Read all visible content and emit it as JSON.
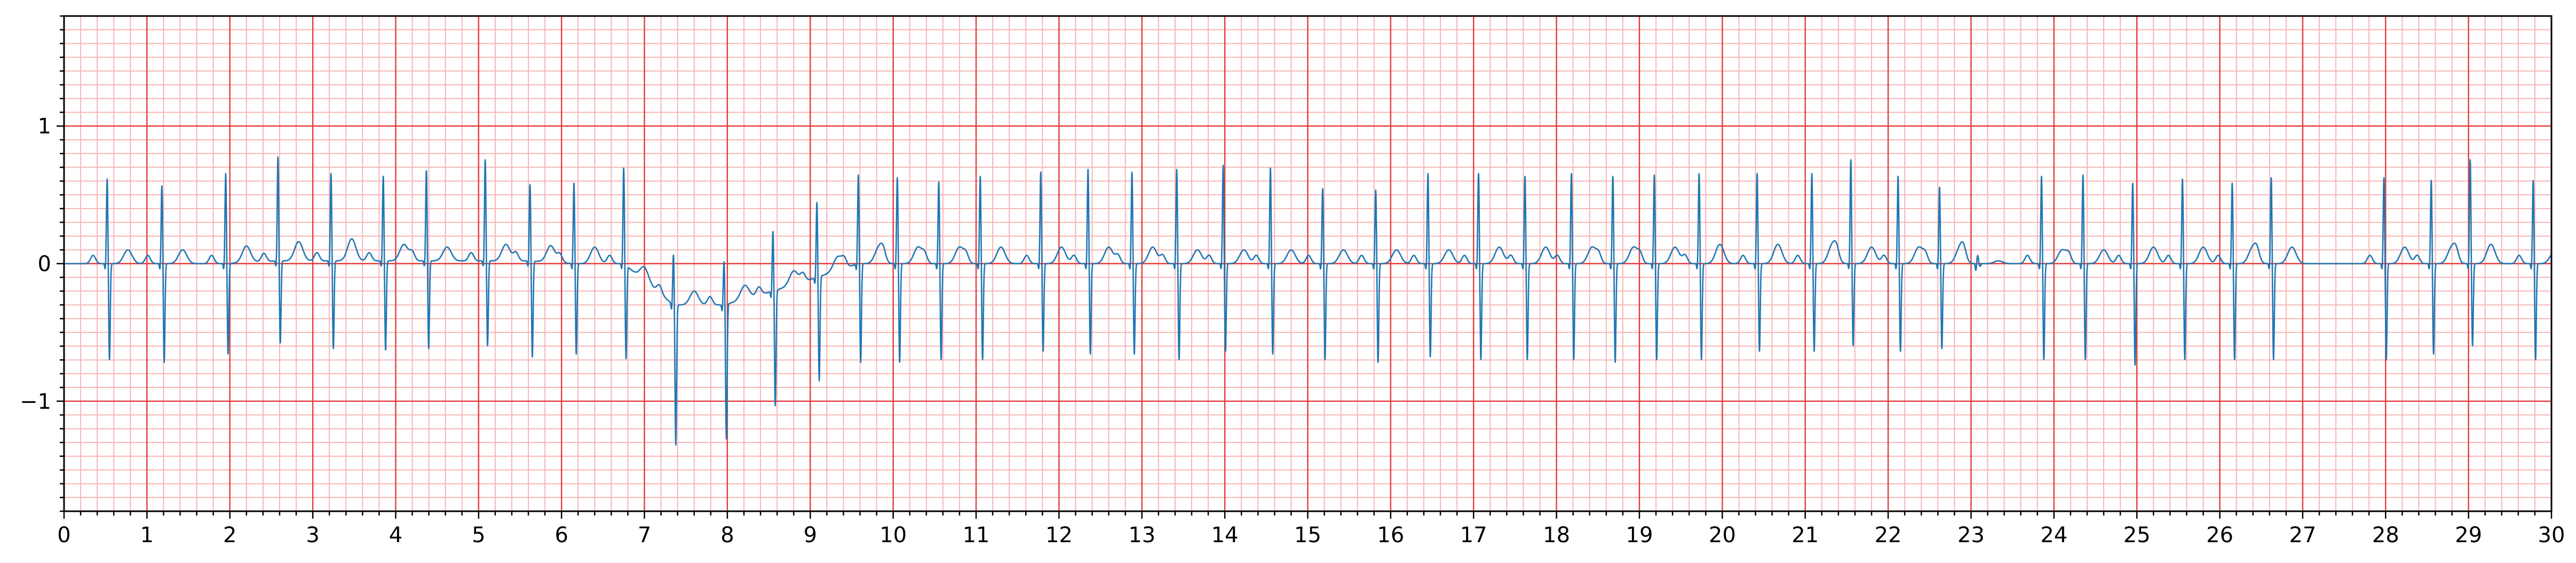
{
  "chart_data": {
    "type": "line",
    "title": "",
    "xlabel": "",
    "ylabel": "",
    "xlim": [
      0,
      30
    ],
    "ylim": [
      -1.8,
      1.8
    ],
    "x_ticks": [
      0,
      1,
      2,
      3,
      4,
      5,
      6,
      7,
      8,
      9,
      10,
      11,
      12,
      13,
      14,
      15,
      16,
      17,
      18,
      19,
      20,
      21,
      22,
      23,
      24,
      25,
      26,
      27,
      28,
      29,
      30
    ],
    "x_tick_labels": [
      "0",
      "1",
      "2",
      "3",
      "4",
      "5",
      "6",
      "7",
      "8",
      "9",
      "10",
      "11",
      "12",
      "13",
      "14",
      "15",
      "16",
      "17",
      "18",
      "19",
      "20",
      "21",
      "22",
      "23",
      "24",
      "25",
      "26",
      "27",
      "28",
      "29",
      "30"
    ],
    "y_ticks": [
      -1,
      0,
      1
    ],
    "y_tick_labels": [
      "−1",
      "0",
      "1"
    ],
    "x_major_step": 1,
    "x_minor_step": 0.2,
    "y_major_step": 1,
    "y_minor_step": 0.1,
    "grid": true,
    "grid_style": "ecg paper",
    "colors": {
      "trace": "#1f77b4",
      "grid_major": "#e33a3a",
      "grid_minor": "#f7b6b6"
    },
    "series": [
      {
        "beats": [
          {
            "t": 0.52,
            "r": 0.62,
            "s": -0.7,
            "base": 0.0,
            "tw": 0.1
          },
          {
            "t": 1.18,
            "r": 0.57,
            "s": -0.72,
            "base": 0.0,
            "tw": 0.1
          },
          {
            "t": 1.95,
            "r": 0.66,
            "s": -0.66,
            "base": 0.0,
            "tw": 0.12
          },
          {
            "t": 2.58,
            "r": 0.76,
            "s": -0.6,
            "base": 0.02,
            "tw": 0.14
          },
          {
            "t": 3.22,
            "r": 0.64,
            "s": -0.64,
            "base": 0.02,
            "tw": 0.16
          },
          {
            "t": 3.85,
            "r": 0.62,
            "s": -0.65,
            "base": 0.02,
            "tw": 0.12
          },
          {
            "t": 4.37,
            "r": 0.66,
            "s": -0.64,
            "base": 0.02,
            "tw": 0.1
          },
          {
            "t": 5.08,
            "r": 0.74,
            "s": -0.62,
            "base": 0.02,
            "tw": 0.12
          },
          {
            "t": 5.62,
            "r": 0.56,
            "s": -0.7,
            "base": 0.02,
            "tw": 0.12
          },
          {
            "t": 6.15,
            "r": 0.59,
            "s": -0.66,
            "base": 0.0,
            "tw": 0.12
          },
          {
            "t": 6.75,
            "r": 0.7,
            "s": -0.68,
            "base": 0.0,
            "tw": 0.1
          },
          {
            "t": 7.35,
            "r": 0.37,
            "s": -1.02,
            "base": -0.3,
            "tw": 0.1
          },
          {
            "t": 7.96,
            "r": 0.32,
            "s": -0.98,
            "base": -0.3,
            "tw": 0.1
          },
          {
            "t": 8.55,
            "r": 0.44,
            "s": -0.84,
            "base": -0.2,
            "tw": 0.1
          },
          {
            "t": 9.08,
            "r": 0.55,
            "s": -0.76,
            "base": -0.1,
            "tw": 0.1
          },
          {
            "t": 9.58,
            "r": 0.65,
            "s": -0.72,
            "base": 0.0,
            "tw": 0.12
          },
          {
            "t": 10.05,
            "r": 0.63,
            "s": -0.72,
            "base": 0.0,
            "tw": 0.12
          },
          {
            "t": 10.55,
            "r": 0.6,
            "s": -0.7,
            "base": 0.0,
            "tw": 0.12
          },
          {
            "t": 11.05,
            "r": 0.64,
            "s": -0.7,
            "base": 0.0,
            "tw": 0.12
          },
          {
            "t": 11.78,
            "r": 0.67,
            "s": -0.64,
            "base": 0.0,
            "tw": 0.12
          },
          {
            "t": 12.35,
            "r": 0.69,
            "s": -0.66,
            "base": 0.0,
            "tw": 0.12
          },
          {
            "t": 12.88,
            "r": 0.67,
            "s": -0.66,
            "base": 0.0,
            "tw": 0.12
          },
          {
            "t": 13.42,
            "r": 0.69,
            "s": -0.7,
            "base": 0.0,
            "tw": 0.1
          },
          {
            "t": 13.98,
            "r": 0.72,
            "s": -0.64,
            "base": 0.0,
            "tw": 0.1
          },
          {
            "t": 14.55,
            "r": 0.7,
            "s": -0.66,
            "base": 0.0,
            "tw": 0.1
          },
          {
            "t": 15.18,
            "r": 0.55,
            "s": -0.7,
            "base": 0.0,
            "tw": 0.1
          },
          {
            "t": 15.82,
            "r": 0.54,
            "s": -0.72,
            "base": 0.0,
            "tw": 0.1
          },
          {
            "t": 16.45,
            "r": 0.66,
            "s": -0.68,
            "base": 0.0,
            "tw": 0.1
          },
          {
            "t": 17.06,
            "r": 0.66,
            "s": -0.7,
            "base": 0.0,
            "tw": 0.12
          },
          {
            "t": 17.62,
            "r": 0.64,
            "s": -0.7,
            "base": 0.0,
            "tw": 0.12
          },
          {
            "t": 18.18,
            "r": 0.66,
            "s": -0.7,
            "base": 0.0,
            "tw": 0.12
          },
          {
            "t": 18.68,
            "r": 0.64,
            "s": -0.72,
            "base": 0.0,
            "tw": 0.12
          },
          {
            "t": 19.18,
            "r": 0.65,
            "s": -0.7,
            "base": 0.0,
            "tw": 0.12
          },
          {
            "t": 19.72,
            "r": 0.66,
            "s": -0.7,
            "base": 0.0,
            "tw": 0.14
          },
          {
            "t": 20.42,
            "r": 0.66,
            "s": -0.64,
            "base": 0.0,
            "tw": 0.14
          },
          {
            "t": 21.08,
            "r": 0.66,
            "s": -0.64,
            "base": 0.0,
            "tw": 0.14
          },
          {
            "t": 21.55,
            "r": 0.76,
            "s": -0.6,
            "base": 0.0,
            "tw": 0.12
          },
          {
            "t": 22.12,
            "r": 0.64,
            "s": -0.64,
            "base": 0.0,
            "tw": 0.12
          },
          {
            "t": 22.62,
            "r": 0.56,
            "s": -0.62,
            "base": 0.0,
            "tw": 0.12
          },
          {
            "t": 23.08,
            "r": 0.06,
            "s": -0.02,
            "base": 0.0,
            "tw": 0.02
          },
          {
            "t": 23.85,
            "r": 0.64,
            "s": -0.7,
            "base": 0.0,
            "tw": 0.1
          },
          {
            "t": 24.35,
            "r": 0.65,
            "s": -0.7,
            "base": 0.0,
            "tw": 0.1
          },
          {
            "t": 24.95,
            "r": 0.59,
            "s": -0.74,
            "base": 0.0,
            "tw": 0.12
          },
          {
            "t": 25.55,
            "r": 0.62,
            "s": -0.7,
            "base": 0.0,
            "tw": 0.12
          },
          {
            "t": 26.15,
            "r": 0.59,
            "s": -0.7,
            "base": 0.0,
            "tw": 0.12
          },
          {
            "t": 26.62,
            "r": 0.63,
            "s": -0.7,
            "base": 0.0,
            "tw": 0.12
          },
          {
            "t": 27.98,
            "r": 0.63,
            "s": -0.7,
            "base": 0.0,
            "tw": 0.12
          },
          {
            "t": 28.55,
            "r": 0.61,
            "s": -0.66,
            "base": 0.0,
            "tw": 0.12
          },
          {
            "t": 29.02,
            "r": 0.76,
            "s": -0.6,
            "base": 0.0,
            "tw": 0.14
          },
          {
            "t": 29.78,
            "r": 0.61,
            "s": -0.7,
            "base": 0.0,
            "tw": 0.08
          }
        ]
      }
    ]
  }
}
